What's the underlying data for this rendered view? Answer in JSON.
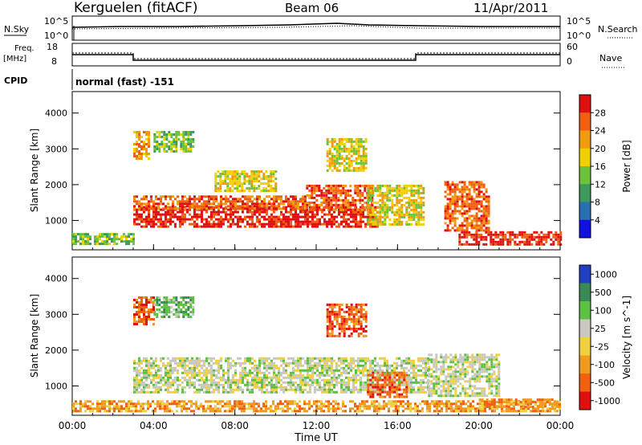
{
  "header": {
    "station": "Kerguelen (fitACF)",
    "beam": "Beam 06",
    "date": "11/Apr/2011"
  },
  "nsky": {
    "label": "N.Sky",
    "right_label": "N.Search",
    "tick_top": "10^5",
    "tick_bottom": "10^0",
    "right_tick_top": "10^5",
    "right_tick_bottom": "10^0"
  },
  "freq": {
    "label_line1": "Freq.",
    "label_line2": "[MHz]",
    "tick_top": "18",
    "tick_bottom": "8",
    "right_label": "Nave",
    "right_tick_top": "60",
    "right_tick_bottom": "0"
  },
  "cpid": {
    "label": "CPID",
    "mode": "normal (fast) -151"
  },
  "chart_data": [
    {
      "type": "heatmap",
      "name": "power",
      "ylabel": "Slant Range [km]",
      "xlabel": "Time UT",
      "x_ticks": [
        "00:00",
        "04:00",
        "08:00",
        "12:00",
        "16:00",
        "20:00",
        "00:00"
      ],
      "y_ticks": [
        1000,
        2000,
        3000,
        4000
      ],
      "ylim": [
        180,
        4600
      ],
      "colorbar": {
        "label": "Power [dB]",
        "ticks": [
          "4",
          "8",
          "12",
          "16",
          "20",
          "24",
          "28"
        ],
        "colors": [
          "#1010e0",
          "#2b6fb3",
          "#3d9a5a",
          "#6cc23a",
          "#f0d000",
          "#f09a10",
          "#f06010",
          "#e01010"
        ]
      },
      "regions": [
        {
          "t": [
            0.0,
            3.0
          ],
          "r": [
            350,
            650
          ],
          "level": 3
        },
        {
          "t": [
            3.0,
            15.0
          ],
          "r": [
            800,
            1400
          ],
          "level": 7
        },
        {
          "t": [
            3.0,
            11.5
          ],
          "r": [
            1350,
            1700
          ],
          "level": 6
        },
        {
          "t": [
            11.5,
            14.8
          ],
          "r": [
            1300,
            2000
          ],
          "level": 6
        },
        {
          "t": [
            14.5,
            17.3
          ],
          "r": [
            900,
            2000
          ],
          "level": 4
        },
        {
          "t": [
            18.3,
            20.5
          ],
          "r": [
            700,
            2100
          ],
          "level": 6
        },
        {
          "t": [
            19.0,
            24.0
          ],
          "r": [
            350,
            700
          ],
          "level": 7
        },
        {
          "t": [
            3.0,
            3.8
          ],
          "r": [
            2700,
            3500
          ],
          "level": 5
        },
        {
          "t": [
            7.0,
            10.0
          ],
          "r": [
            1800,
            2400
          ],
          "level": 4
        },
        {
          "t": [
            4.0,
            6.0
          ],
          "r": [
            2900,
            3500
          ],
          "level": 3
        },
        {
          "t": [
            12.5,
            14.5
          ],
          "r": [
            2400,
            3300
          ],
          "level": 4
        }
      ]
    },
    {
      "type": "heatmap",
      "name": "velocity",
      "ylabel": "Slant Range [km]",
      "xlabel": "Time UT",
      "x_ticks": [
        "00:00",
        "04:00",
        "08:00",
        "12:00",
        "16:00",
        "20:00",
        "00:00"
      ],
      "y_ticks": [
        1000,
        2000,
        3000,
        4000
      ],
      "ylim": [
        180,
        4600
      ],
      "colorbar": {
        "label": "Velocity [m s^-1]",
        "ticks": [
          "1000",
          "500",
          "100",
          "25",
          "-25",
          "-100",
          "-500",
          "-1000"
        ],
        "colors": [
          "#2040c0",
          "#3a8a55",
          "#5cc040",
          "#c8c8c0",
          "#f0d040",
          "#f09a20",
          "#f06010",
          "#e01010"
        ]
      },
      "regions": [
        {
          "t": [
            3.0,
            17.5
          ],
          "r": [
            800,
            1800
          ],
          "level": 3
        },
        {
          "t": [
            17.5,
            21.0
          ],
          "r": [
            700,
            1900
          ],
          "level": 3
        },
        {
          "t": [
            0.0,
            24.0
          ],
          "r": [
            300,
            600
          ],
          "level": 5
        },
        {
          "t": [
            14.5,
            16.5
          ],
          "r": [
            700,
            1400
          ],
          "level": 6
        },
        {
          "t": [
            3.0,
            4.0
          ],
          "r": [
            2700,
            3500
          ],
          "level": 6
        },
        {
          "t": [
            4.0,
            6.0
          ],
          "r": [
            2900,
            3500
          ],
          "level": 2
        },
        {
          "t": [
            12.5,
            14.5
          ],
          "r": [
            2400,
            3300
          ],
          "level": 6
        },
        {
          "t": [
            20.0,
            24.0
          ],
          "r": [
            400,
            650
          ],
          "level": 5
        }
      ]
    }
  ]
}
